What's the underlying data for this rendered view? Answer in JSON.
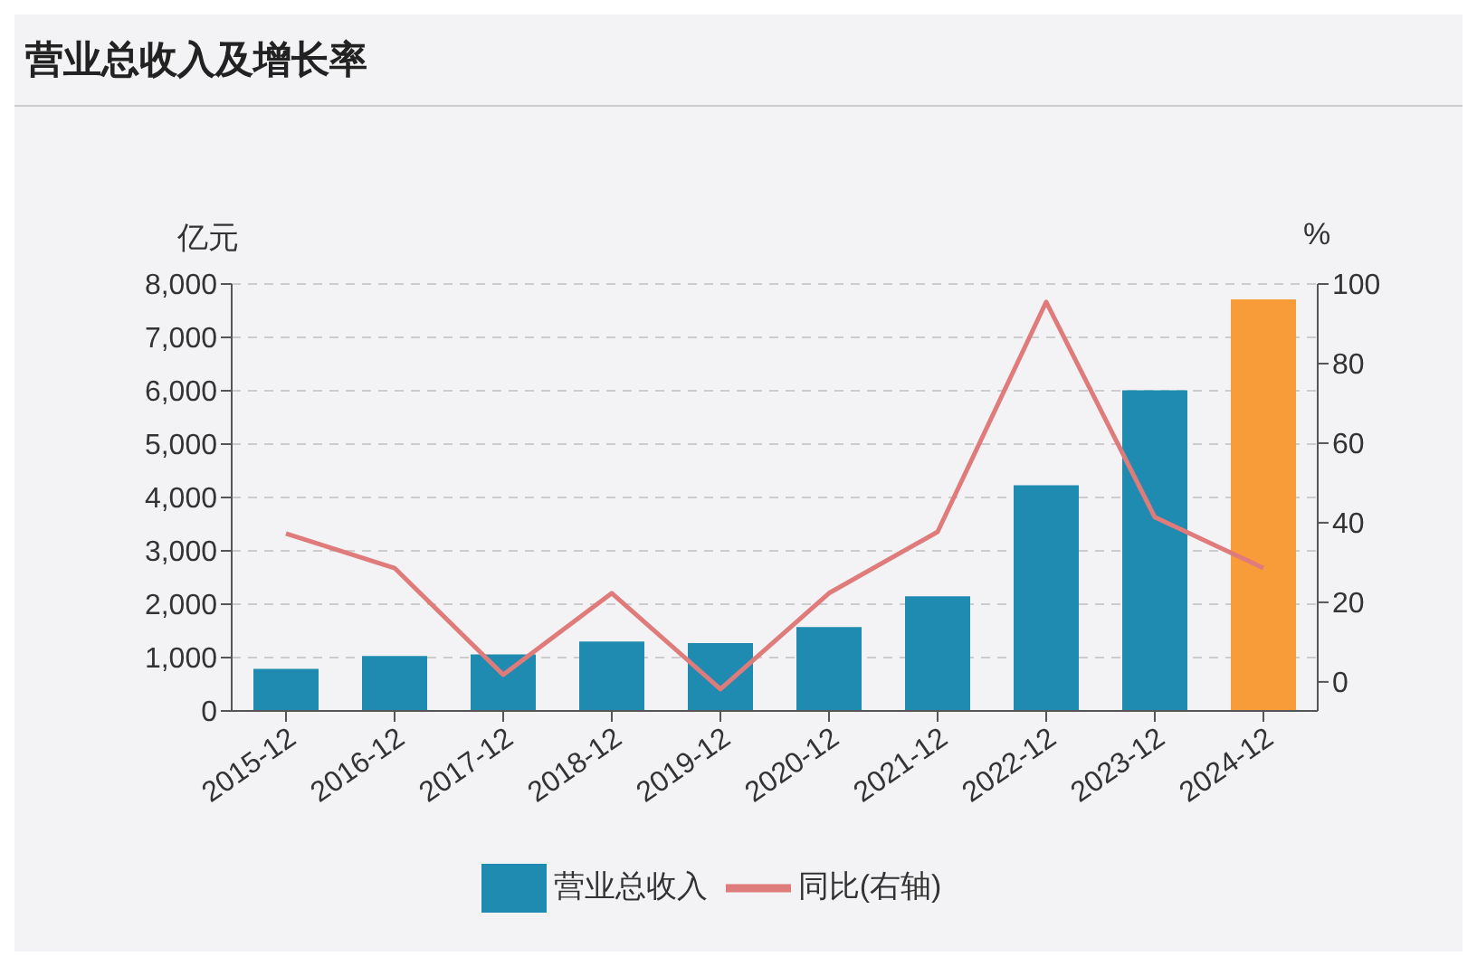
{
  "chart_data": {
    "type": "bar",
    "title": "营业总收入及增长率",
    "ylabel": "亿元",
    "y2label": "%",
    "categories": [
      "2015-12",
      "2016-12",
      "2017-12",
      "2018-12",
      "2019-12",
      "2020-12",
      "2021-12",
      "2022-12",
      "2023-12",
      "2024-12"
    ],
    "series": [
      {
        "name": "营业总收入",
        "color": "#1f8bb0",
        "colors": [
          "#1f8bb0",
          "#1f8bb0",
          "#1f8bb0",
          "#1f8bb0",
          "#1f8bb0",
          "#1f8bb0",
          "#1f8bb0",
          "#1f8bb0",
          "#1f8bb0",
          "#f89c3a"
        ],
        "values": [
          790,
          1030,
          1060,
          1300,
          1270,
          1570,
          2150,
          4230,
          6010,
          7710
        ]
      },
      {
        "name": "同比(右轴)",
        "type": "line",
        "axis": "y2",
        "color": "#e07b7b",
        "values": [
          37.3,
          28.6,
          1.8,
          22.3,
          -1.8,
          22.3,
          37.7,
          95.5,
          41.4,
          28.6
        ]
      }
    ],
    "ylim": [
      0,
      8000
    ],
    "yticks": [
      {
        "value": 0,
        "label": "0"
      },
      {
        "value": 1000,
        "label": "1,000"
      },
      {
        "value": 2000,
        "label": "2,000"
      },
      {
        "value": 3000,
        "label": "3,000"
      },
      {
        "value": 4000,
        "label": "4,000"
      },
      {
        "value": 5000,
        "label": "5,000"
      },
      {
        "value": 6000,
        "label": "6,000"
      },
      {
        "value": 7000,
        "label": "7,000"
      },
      {
        "value": 8000,
        "label": "8,000"
      }
    ],
    "y2lim": [
      -7.3,
      100
    ],
    "y2ticks": [
      0,
      20,
      40,
      60,
      80,
      100
    ],
    "grid": "y",
    "legend": "bottom",
    "marker": "none",
    "line_style": "solid"
  }
}
